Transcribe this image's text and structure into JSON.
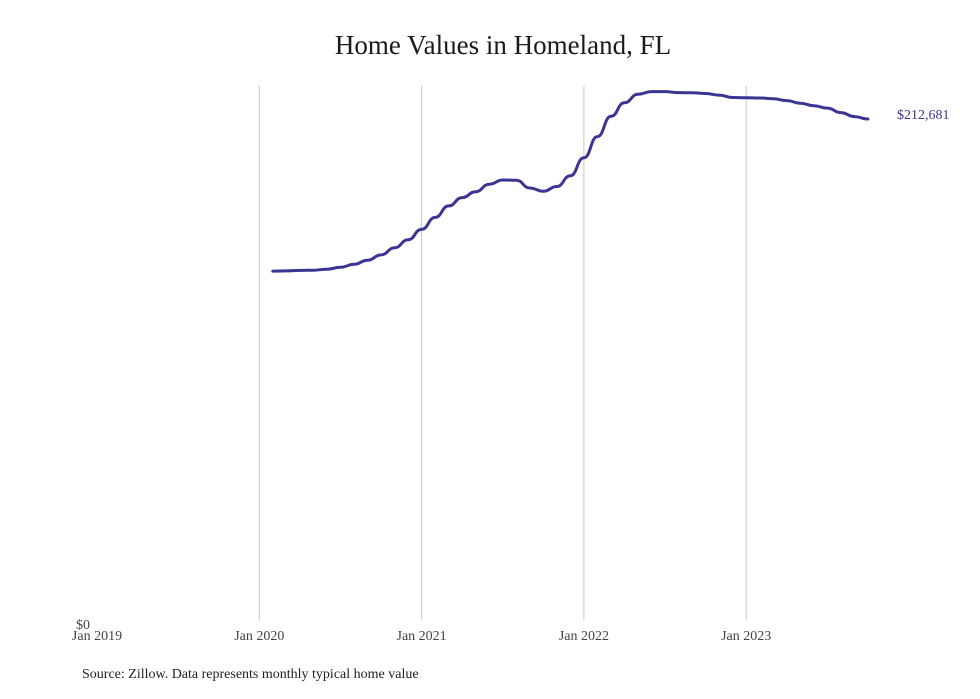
{
  "title": "Home Values in Homeland, FL",
  "source": "Source: Zillow. Data represents monthly typical home value",
  "end_label": "$212,681",
  "y_zero_label": "$0",
  "x_ticks": [
    "Jan 2019",
    "Jan 2020",
    "Jan 2021",
    "Jan 2022",
    "Jan 2023"
  ],
  "colors": {
    "line": "#3a3593",
    "grid": "#c8c8c8",
    "text": "#222222"
  },
  "chart_data": {
    "type": "line",
    "title": "Home Values in Homeland, FL",
    "xlabel": "",
    "ylabel": "",
    "x_tick_labels": [
      "Jan 2019",
      "Jan 2020",
      "Jan 2021",
      "Jan 2022",
      "Jan 2023"
    ],
    "ylim": [
      0,
      225000
    ],
    "y_tick_labels": [
      "$0"
    ],
    "grid": "vertical gridlines at each January",
    "legend": "none",
    "annotations": [
      "$212,681 (last value)"
    ],
    "series": [
      {
        "name": "Typical home value",
        "x": [
          "2020-02",
          "2020-03",
          "2020-04",
          "2020-05",
          "2020-06",
          "2020-07",
          "2020-08",
          "2020-09",
          "2020-10",
          "2020-11",
          "2020-12",
          "2021-01",
          "2021-02",
          "2021-03",
          "2021-04",
          "2021-05",
          "2021-06",
          "2021-07",
          "2021-08",
          "2021-09",
          "2021-10",
          "2021-11",
          "2021-12",
          "2022-01",
          "2022-02",
          "2022-03",
          "2022-04",
          "2022-05",
          "2022-06",
          "2022-07",
          "2022-08",
          "2022-09",
          "2022-10",
          "2022-11",
          "2022-12",
          "2023-01",
          "2023-02",
          "2023-03",
          "2023-04",
          "2023-05",
          "2023-06",
          "2023-07",
          "2023-08",
          "2023-09",
          "2023-10"
        ],
        "values": [
          148100,
          148200,
          148400,
          148500,
          148900,
          149700,
          151000,
          152700,
          155000,
          158000,
          161400,
          165800,
          170900,
          175800,
          179300,
          181800,
          185000,
          186800,
          186700,
          183400,
          182000,
          184000,
          188600,
          196200,
          205200,
          213800,
          219600,
          223200,
          224300,
          224300,
          223900,
          223800,
          223500,
          222800,
          221800,
          221700,
          221600,
          221300,
          220500,
          219400,
          218300,
          217300,
          215400,
          213700,
          212681
        ]
      }
    ]
  }
}
